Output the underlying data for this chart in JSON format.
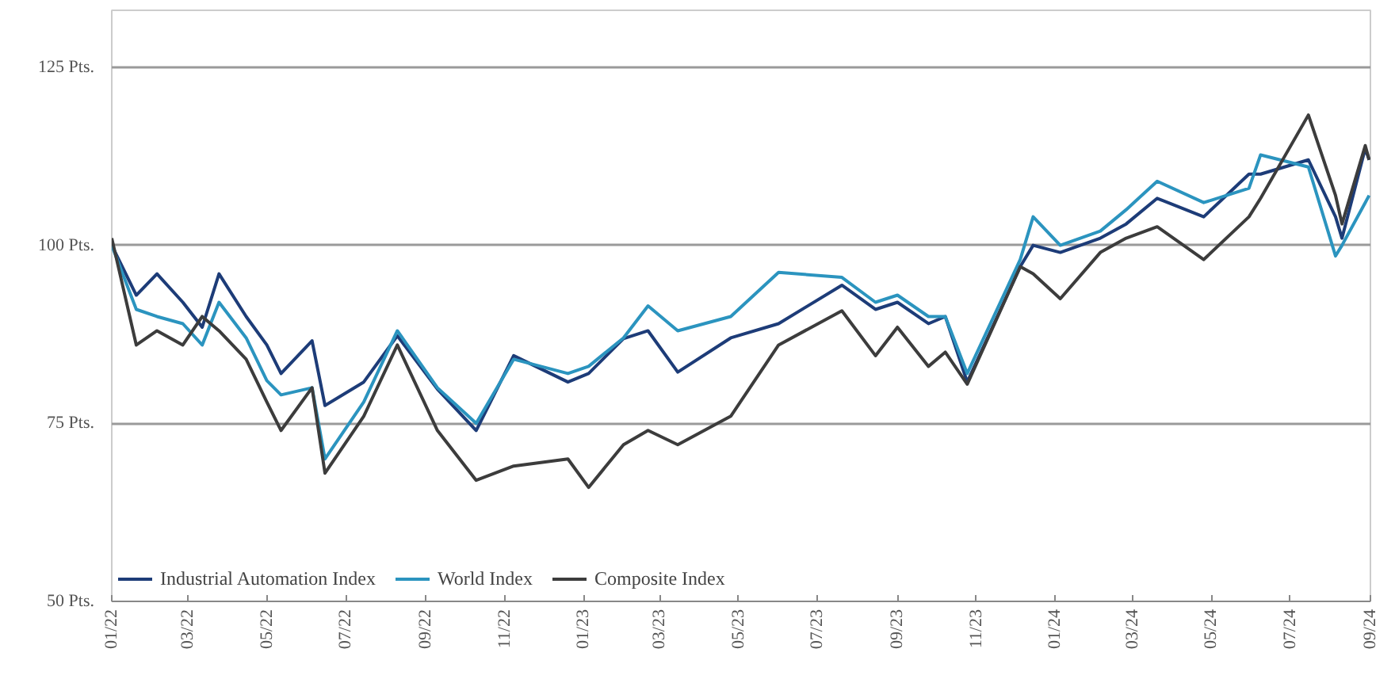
{
  "chart_data": {
    "type": "line",
    "x": [
      "2022-01-01",
      "2022-01-20",
      "2022-02-05",
      "2022-02-25",
      "2022-03-12",
      "2022-03-25",
      "2022-04-15",
      "2022-05-01",
      "2022-05-12",
      "2022-06-05",
      "2022-06-15",
      "2022-07-15",
      "2022-08-10",
      "2022-09-10",
      "2022-10-10",
      "2022-11-08",
      "2022-12-20",
      "2023-01-05",
      "2023-02-01",
      "2023-02-20",
      "2023-03-15",
      "2023-04-25",
      "2023-06-01",
      "2023-07-20",
      "2023-08-15",
      "2023-09-01",
      "2023-09-25",
      "2023-10-08",
      "2023-10-25",
      "2023-12-05",
      "2023-12-15",
      "2024-01-05",
      "2024-02-05",
      "2024-02-25",
      "2024-03-20",
      "2024-04-25",
      "2024-05-30",
      "2024-06-08",
      "2024-07-15",
      "2024-08-05",
      "2024-08-10",
      "2024-08-28",
      "2024-08-31"
    ],
    "series": [
      {
        "name": "Industrial Automation Index",
        "color": "#1d3c78",
        "values": [
          100,
          93,
          96,
          92,
          88.5,
          96,
          90,
          86,
          82,
          86.6,
          77.5,
          80.8,
          87.3,
          79.8,
          74,
          84.5,
          80.8,
          82,
          86.9,
          88,
          82.2,
          87,
          89,
          94.4,
          91,
          92,
          89,
          90,
          80.8,
          97,
          100,
          99,
          101,
          103,
          106.6,
          104,
          110,
          110,
          112,
          104,
          101,
          113.6,
          112
        ]
      },
      {
        "name": "World Index",
        "color": "#2b94bf",
        "values": [
          100,
          91,
          90,
          89,
          86,
          92,
          87,
          81,
          79,
          80,
          70,
          78,
          88,
          80,
          75,
          84,
          82,
          83,
          87,
          91.5,
          88,
          90,
          96.2,
          95.5,
          92,
          93,
          90,
          90,
          82,
          98,
          104,
          100,
          102,
          105,
          109,
          106,
          108,
          112.7,
          111,
          98.5,
          100,
          106,
          107
        ]
      },
      {
        "name": "Composite Index",
        "color": "#3c3c3c",
        "values": [
          101,
          86,
          88,
          86,
          90,
          88,
          84,
          78,
          74,
          80,
          68,
          76,
          86,
          74,
          67,
          69,
          70,
          66,
          72,
          74,
          72,
          76,
          86,
          90.8,
          84.5,
          88.5,
          83,
          85,
          80.5,
          97,
          96,
          92.5,
          99,
          101,
          102.6,
          98,
          104,
          106.6,
          118.3,
          107,
          103,
          114,
          112
        ]
      }
    ],
    "xlim": [
      "2022-01-01",
      "2024-09-01"
    ],
    "xticks": [
      {
        "value": "2022-01-01",
        "label": "01/22"
      },
      {
        "value": "2022-03-01",
        "label": "03/22"
      },
      {
        "value": "2022-05-01",
        "label": "05/22"
      },
      {
        "value": "2022-07-01",
        "label": "07/22"
      },
      {
        "value": "2022-09-01",
        "label": "09/22"
      },
      {
        "value": "2022-11-01",
        "label": "11/22"
      },
      {
        "value": "2023-01-01",
        "label": "01/23"
      },
      {
        "value": "2023-03-01",
        "label": "03/23"
      },
      {
        "value": "2023-05-01",
        "label": "05/23"
      },
      {
        "value": "2023-07-01",
        "label": "07/23"
      },
      {
        "value": "2023-09-01",
        "label": "09/23"
      },
      {
        "value": "2023-11-01",
        "label": "11/23"
      },
      {
        "value": "2024-01-01",
        "label": "01/24"
      },
      {
        "value": "2024-03-01",
        "label": "03/24"
      },
      {
        "value": "2024-05-01",
        "label": "05/24"
      },
      {
        "value": "2024-07-01",
        "label": "07/24"
      },
      {
        "value": "2024-09-01",
        "label": "09/24"
      }
    ],
    "ylim": [
      50,
      133
    ],
    "yticks": [
      {
        "value": 50,
        "label": "50 Pts."
      },
      {
        "value": 75,
        "label": "75 Pts."
      },
      {
        "value": 100,
        "label": "100 Pts."
      },
      {
        "value": 125,
        "label": "125 Pts."
      }
    ],
    "grid": "y",
    "legend": "bottom",
    "line_style": "solid"
  }
}
